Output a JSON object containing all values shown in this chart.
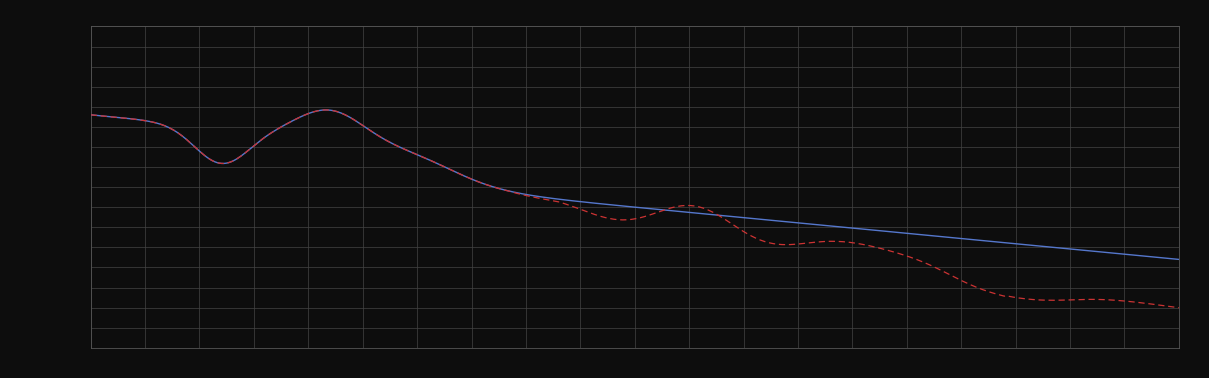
{
  "background_color": "#0d0d0d",
  "plot_bg_color": "#0d0d0d",
  "grid_color": "#444444",
  "blue_line_color": "#5577cc",
  "red_line_color": "#cc3333",
  "figsize": [
    12.09,
    3.78
  ],
  "dpi": 100,
  "n_points": 500,
  "xlim": [
    0,
    100
  ],
  "ylim": [
    0,
    100
  ],
  "x_grid_spacing": 5,
  "y_grid_spacing": 5
}
